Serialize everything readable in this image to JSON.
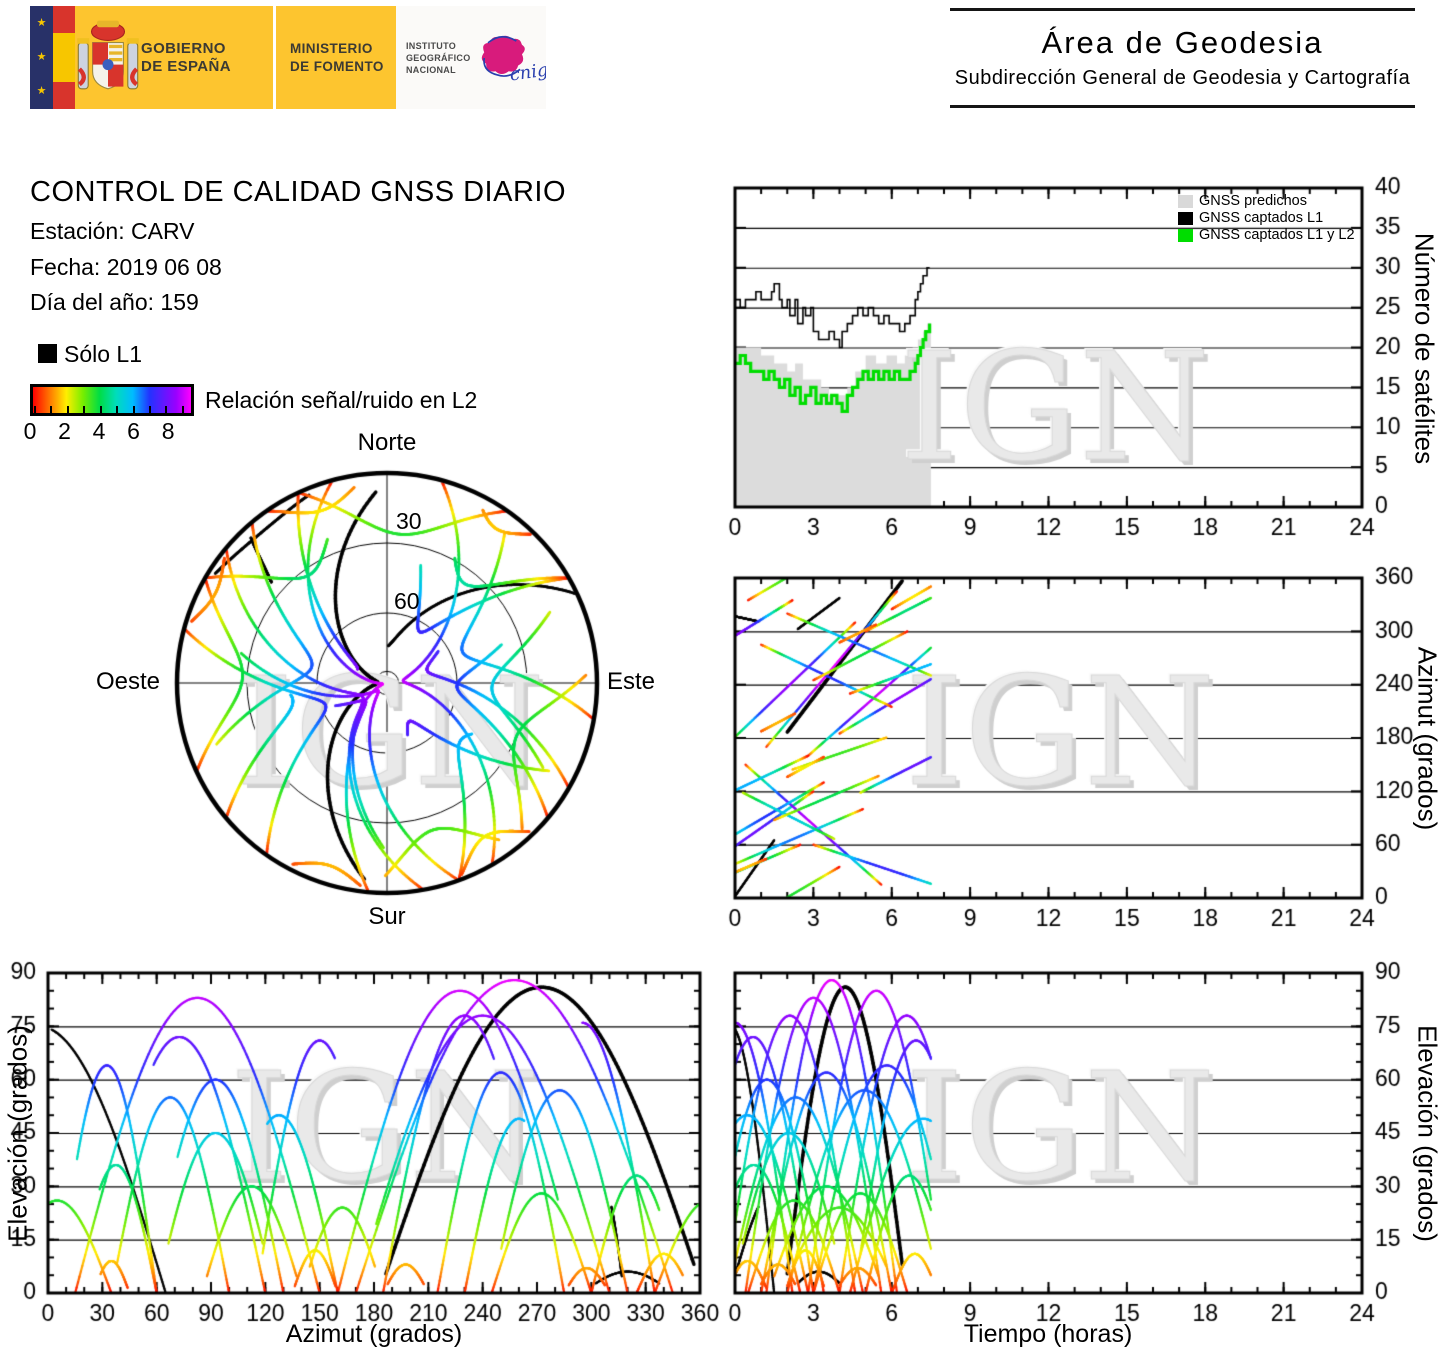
{
  "header": {
    "gobierno_line1": "GOBIERNO",
    "gobierno_line2": "DE ESPAÑA",
    "ministerio_line1": "MINISTERIO",
    "ministerio_line2": "DE FOMENTO",
    "instituto_line1": "INSTITUTO",
    "instituto_line2": "GEOGRÁFICO",
    "instituto_line3": "NACIONAL",
    "cnig_text": "cnig",
    "area_title": "Área de Geodesia",
    "area_subtitle": "Subdirección General de Geodesia y Cartografía"
  },
  "info": {
    "title": "CONTROL DE CALIDAD GNSS DIARIO",
    "station_label": "Estación: CARV",
    "date_label": "Fecha: 2019 06 08",
    "doy_label": "Día del año: 159"
  },
  "snr_legend": {
    "solo_l1_label": "Sólo L1",
    "colorbar_label": "Relación señal/ruido en L2",
    "tick_labels": [
      "0",
      "2",
      "4",
      "6",
      "8"
    ],
    "tick_values": [
      0,
      2,
      4,
      6,
      8
    ],
    "minor_tick_values": [
      0,
      1,
      2,
      3,
      4,
      5,
      6,
      7,
      8,
      9
    ],
    "scale_max": 9.5
  },
  "colormap_stops": [
    [
      0,
      "#ff0000"
    ],
    [
      1,
      "#ff7700"
    ],
    [
      2,
      "#ffee00"
    ],
    [
      3,
      "#77ee00"
    ],
    [
      4,
      "#00dd44"
    ],
    [
      5,
      "#00ddbb"
    ],
    [
      6,
      "#00bbff"
    ],
    [
      7,
      "#2233ff"
    ],
    [
      8.6,
      "#9900ff"
    ],
    [
      9.5,
      "#ff00ff"
    ]
  ],
  "watermark_text": "IGN",
  "skyplot_labels": {
    "north": "Norte",
    "south": "Sur",
    "west": "Oeste",
    "east": "Este",
    "ring30": "30",
    "ring60": "60"
  },
  "axis_titles": {
    "sat_y": "Número de satélites",
    "az_y": "Azimut (grados)",
    "elaz_y": "Elevación (grados)",
    "elaz_x": "Azimut (grados)",
    "eltime_y": "Elevación (grados)",
    "eltime_x": "Tiempo (horas)"
  },
  "chart_data": [
    {
      "id": "sat-count",
      "type": "line",
      "title": "",
      "xlabel": "",
      "ylabel": "Número de satélites",
      "xlim": [
        0,
        24
      ],
      "ylim": [
        0,
        40
      ],
      "xticks": [
        0,
        3,
        6,
        9,
        12,
        15,
        18,
        21,
        24
      ],
      "xminor_step": 1,
      "yticks": [
        0,
        5,
        10,
        15,
        20,
        25,
        30,
        35,
        40
      ],
      "grid_y": [
        5,
        10,
        15,
        20,
        25,
        30,
        35
      ],
      "legend_position": "top-right-inside",
      "legend": [
        {
          "label": "GNSS predichos",
          "color": "#d9d9d9"
        },
        {
          "label": "GNSS captados L1",
          "color": "#000000"
        },
        {
          "label": "GNSS captados L1 y L2",
          "color": "#00dd00"
        }
      ],
      "series": [
        {
          "name": "GNSS predichos",
          "style": "area-step",
          "color": "#dcdcdc",
          "x": [
            0,
            0.5,
            1.0,
            1.5,
            2.0,
            2.3,
            2.6,
            3.0,
            3.3,
            3.6,
            4.0,
            4.3,
            4.6,
            5.0,
            5.4,
            5.8,
            6.2,
            6.5,
            6.8,
            7.0,
            7.2,
            7.35,
            7.5
          ],
          "y": [
            20,
            20,
            19,
            18,
            17,
            18,
            16,
            16,
            15,
            14,
            14,
            15,
            17,
            19,
            18,
            19,
            18,
            19,
            20,
            21,
            22,
            23,
            23
          ]
        },
        {
          "name": "GNSS captados L1",
          "style": "step",
          "color": "#000000",
          "width": 1.6,
          "x": [
            0,
            0.2,
            0.4,
            0.6,
            0.8,
            1.0,
            1.2,
            1.4,
            1.5,
            1.7,
            1.8,
            2.0,
            2.1,
            2.3,
            2.4,
            2.6,
            2.7,
            2.9,
            3.0,
            3.2,
            3.4,
            3.6,
            3.8,
            4.0,
            4.1,
            4.3,
            4.5,
            4.7,
            4.9,
            5.1,
            5.3,
            5.5,
            5.7,
            5.9,
            6.1,
            6.3,
            6.5,
            6.7,
            6.9,
            7.0,
            7.1,
            7.2,
            7.35,
            7.45
          ],
          "y": [
            26,
            25,
            26,
            26,
            27,
            26,
            26,
            27,
            28,
            26,
            25,
            26,
            24,
            26,
            23,
            25,
            24,
            25,
            22,
            21,
            21,
            22,
            21,
            20,
            22,
            23,
            24,
            25,
            24,
            25,
            24,
            23,
            24,
            23,
            23,
            22,
            23,
            24,
            26,
            27,
            28,
            29,
            30,
            30
          ]
        },
        {
          "name": "GNSS captados L1 y L2",
          "style": "step",
          "color": "#00dd00",
          "width": 3.2,
          "x": [
            0,
            0.2,
            0.4,
            0.6,
            0.9,
            1.1,
            1.3,
            1.5,
            1.7,
            1.9,
            2.1,
            2.3,
            2.5,
            2.7,
            2.9,
            3.1,
            3.3,
            3.5,
            3.7,
            3.9,
            4.1,
            4.3,
            4.5,
            4.7,
            4.9,
            5.1,
            5.3,
            5.5,
            5.7,
            5.9,
            6.1,
            6.3,
            6.5,
            6.7,
            6.9,
            7.0,
            7.1,
            7.2,
            7.3,
            7.45
          ],
          "y": [
            18,
            19,
            18,
            17,
            17,
            16,
            17,
            16,
            15,
            16,
            14,
            15,
            13,
            14,
            15,
            13,
            14,
            13,
            14,
            13,
            12,
            14,
            15,
            16,
            17,
            16,
            17,
            16,
            17,
            16,
            17,
            16,
            16,
            17,
            18,
            19,
            20,
            21,
            22,
            23
          ]
        }
      ]
    },
    {
      "id": "azimuth-time",
      "type": "scatter",
      "xlabel": "",
      "ylabel": "Azimut (grados)",
      "xlim": [
        0,
        24
      ],
      "ylim": [
        0,
        360
      ],
      "xticks": [
        0,
        3,
        6,
        9,
        12,
        15,
        18,
        21,
        24
      ],
      "xminor_step": 1,
      "yticks": [
        0,
        60,
        120,
        180,
        240,
        300,
        360
      ],
      "grid_y": [
        60,
        120,
        180,
        240,
        300
      ],
      "uses": "satellite_tracks",
      "x_of": "time",
      "y_of": "azimuth"
    },
    {
      "id": "skyplot",
      "type": "polar",
      "rings_elevation": [
        30,
        60
      ],
      "center_ring_elevation": 85,
      "uses": "satellite_tracks"
    },
    {
      "id": "elevation-azimuth",
      "type": "scatter",
      "xlabel": "Azimut (grados)",
      "ylabel": "Elevación (grados)",
      "xlim": [
        0,
        360
      ],
      "ylim": [
        0,
        90
      ],
      "xticks": [
        0,
        30,
        60,
        90,
        120,
        150,
        180,
        210,
        240,
        270,
        300,
        330,
        360
      ],
      "xminor_step": 10,
      "yticks": [
        0,
        15,
        30,
        45,
        60,
        75,
        90
      ],
      "yminor_step": 5,
      "grid_y": [
        15,
        30,
        45,
        60,
        75
      ],
      "uses": "satellite_tracks",
      "x_of": "azimuth",
      "y_of": "elevation"
    },
    {
      "id": "elevation-time",
      "type": "scatter",
      "xlabel": "Tiempo (horas)",
      "ylabel": "Elevación (grados)",
      "xlim": [
        0,
        24
      ],
      "ylim": [
        0,
        90
      ],
      "xticks": [
        0,
        3,
        6,
        9,
        12,
        15,
        18,
        21,
        24
      ],
      "xminor_step": 1,
      "yticks": [
        0,
        15,
        30,
        45,
        60,
        75,
        90
      ],
      "yminor_step": 5,
      "grid_y": [
        15,
        30,
        45,
        60,
        75
      ],
      "uses": "satellite_tracks",
      "x_of": "time",
      "y_of": "elevation"
    }
  ],
  "satellite_tracks": [
    {
      "t0": 0.0,
      "t1": 1.5,
      "p0": 0.55,
      "p1": 1.0,
      "az0": -75,
      "az1": 65,
      "el": 75,
      "l2": false
    },
    {
      "t0": 2.0,
      "t1": 6.4,
      "p0": 0.02,
      "p1": 0.97,
      "az0": 183,
      "az1": 362,
      "el": 86,
      "l2": false,
      "w": 3.5
    },
    {
      "t0": 2.4,
      "t1": 4.0,
      "p0": 0.15,
      "p1": 0.85,
      "az0": 295,
      "az1": 345,
      "el": 6,
      "l2": false
    },
    {
      "t0": 0.0,
      "t1": 0.9,
      "p0": 0.05,
      "p1": 0.3,
      "az0": 318,
      "az1": 295,
      "el": 30,
      "l2": false
    },
    {
      "t0": 0.0,
      "t1": 4.6,
      "p0": 0.08,
      "p1": 1.0,
      "az0": 170,
      "az1": 310,
      "el": 78,
      "l2": true
    },
    {
      "t0": 0.0,
      "t1": 3.0,
      "p0": 0.35,
      "p1": 1.0,
      "az0": 25,
      "az1": 120,
      "el": 72,
      "l2": true
    },
    {
      "t0": 0.4,
      "t1": 5.6,
      "p0": 0.0,
      "p1": 1.0,
      "az0": 150,
      "az1": 15,
      "el": 83,
      "l2": true
    },
    {
      "t0": 1.2,
      "t1": 6.2,
      "p0": 0.0,
      "p1": 1.0,
      "az0": 170,
      "az1": 345,
      "el": 88,
      "l2": true
    },
    {
      "t0": 2.8,
      "t1": 7.5,
      "p0": 0.0,
      "p1": 0.9,
      "az0": 160,
      "az1": 295,
      "el": 85,
      "l2": true
    },
    {
      "t0": 4.0,
      "t1": 7.5,
      "p0": 0.0,
      "p1": 0.68,
      "az0": 185,
      "az1": 275,
      "el": 78,
      "l2": true
    },
    {
      "t0": 0.0,
      "t1": 2.2,
      "p0": 0.5,
      "p1": 1.0,
      "az0": 255,
      "az1": 335,
      "el": 76,
      "l2": true
    },
    {
      "t0": 4.8,
      "t1": 7.5,
      "p0": 0.05,
      "p1": 0.62,
      "az0": 115,
      "az1": 185,
      "el": 71,
      "l2": true
    },
    {
      "t0": 0.0,
      "t1": 3.4,
      "p0": 0.22,
      "p1": 1.0,
      "az0": 55,
      "az1": 130,
      "el": 60,
      "l2": true
    },
    {
      "t0": 0.0,
      "t1": 4.9,
      "p0": 0.05,
      "p1": 1.0,
      "az0": 35,
      "az1": 100,
      "el": 55,
      "l2": true
    },
    {
      "t0": 1.0,
      "t1": 6.0,
      "p0": 0.0,
      "p1": 1.0,
      "az0": 285,
      "az1": 215,
      "el": 62,
      "l2": true
    },
    {
      "t0": 2.0,
      "t1": 7.5,
      "p0": 0.0,
      "p1": 0.93,
      "az0": 320,
      "az1": 245,
      "el": 57,
      "l2": true
    },
    {
      "t0": 0.0,
      "t1": 2.8,
      "p0": 0.4,
      "p1": 1.0,
      "az0": 95,
      "az1": 160,
      "el": 50,
      "l2": true
    },
    {
      "t0": 3.0,
      "t1": 7.5,
      "p0": 0.0,
      "p1": 0.8,
      "az0": 60,
      "az1": 5,
      "el": 64,
      "l2": true
    },
    {
      "t0": 4.4,
      "t1": 7.5,
      "p0": 0.0,
      "p1": 0.55,
      "az0": 230,
      "az1": 290,
      "el": 49,
      "l2": true
    },
    {
      "t0": 0.3,
      "t1": 3.8,
      "p0": 0.1,
      "p1": 0.9,
      "az0": 125,
      "az1": 60,
      "el": 45,
      "l2": true
    },
    {
      "t0": 0.0,
      "t1": 2.5,
      "p0": 0.3,
      "p1": 1.0,
      "az0": 15,
      "az1": 60,
      "el": 36,
      "l2": true
    },
    {
      "t0": 1.5,
      "t1": 5.5,
      "p0": 0.05,
      "p1": 0.95,
      "az0": 85,
      "az1": 140,
      "el": 30,
      "l2": true
    },
    {
      "t0": 3.0,
      "t1": 6.6,
      "p0": 0.0,
      "p1": 1.0,
      "az0": 245,
      "az1": 300,
      "el": 28,
      "l2": true
    },
    {
      "t0": 5.0,
      "t1": 7.5,
      "p0": 0.0,
      "p1": 0.75,
      "az0": 300,
      "az1": 350,
      "el": 33,
      "l2": true
    },
    {
      "t0": 0.5,
      "t1": 4.0,
      "p0": 0.0,
      "p1": 1.0,
      "az0": 335,
      "az1": 395,
      "el": 26,
      "l2": true
    },
    {
      "t0": 2.2,
      "t1": 5.8,
      "p0": 0.1,
      "p1": 0.9,
      "az0": 140,
      "az1": 185,
      "el": 24,
      "l2": true
    },
    {
      "t0": 0.0,
      "t1": 1.2,
      "p0": 0.2,
      "p1": 0.95,
      "az0": 25,
      "az1": 45,
      "el": 9,
      "l2": true
    },
    {
      "t0": 2.0,
      "t1": 3.4,
      "p0": 0.05,
      "p1": 0.95,
      "az0": 135,
      "az1": 160,
      "el": 12,
      "l2": true
    },
    {
      "t0": 4.0,
      "t1": 5.4,
      "p0": 0.1,
      "p1": 0.9,
      "az0": 285,
      "az1": 310,
      "el": 7,
      "l2": true
    },
    {
      "t0": 6.0,
      "t1": 7.5,
      "p0": 0.0,
      "p1": 0.85,
      "az0": 325,
      "az1": 355,
      "el": 11,
      "l2": true
    },
    {
      "t0": 1.0,
      "t1": 2.3,
      "p0": 0.1,
      "p1": 0.9,
      "az0": 185,
      "az1": 210,
      "el": 8,
      "l2": true
    }
  ]
}
